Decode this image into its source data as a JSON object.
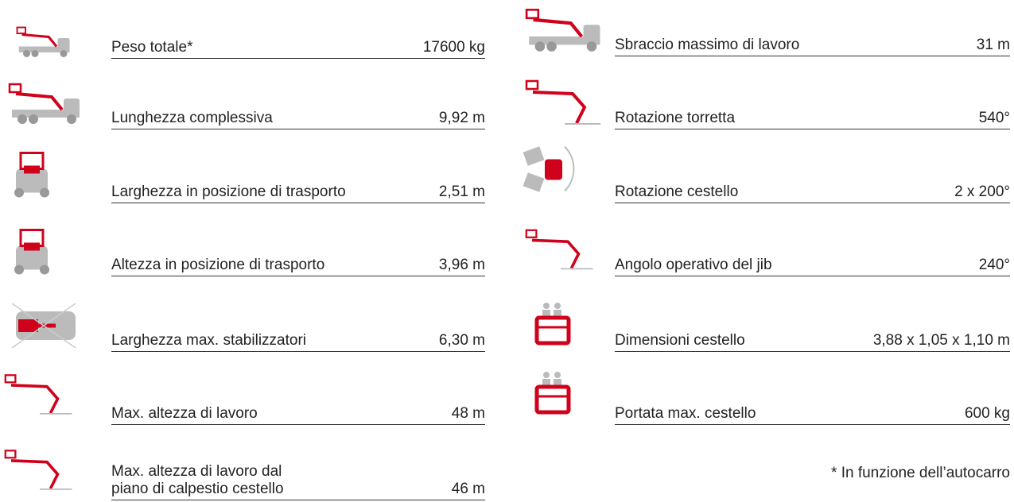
{
  "left_specs": [
    {
      "label": "Peso totale*",
      "value": "17600 kg"
    },
    {
      "label": "Lunghezza complessiva",
      "value": "9,92 m"
    },
    {
      "label": "Larghezza in posizione di trasporto",
      "value": "2,51 m"
    },
    {
      "label": "Altezza in posizione di trasporto",
      "value": "3,96 m"
    },
    {
      "label": "Larghezza max. stabilizzatori",
      "value": "6,30 m"
    },
    {
      "label": "Max. altezza di lavoro",
      "value": "48 m"
    },
    {
      "label": [
        "Max. altezza di lavoro dal",
        "piano di calpestio cestello"
      ],
      "value": "46 m"
    }
  ],
  "right_specs": [
    {
      "label": "Sbraccio massimo di lavoro",
      "value": "31 m"
    },
    {
      "label": "Rotazione torretta",
      "value": "540°"
    },
    {
      "label": "Rotazione cestello",
      "value": "2 x 200°"
    },
    {
      "label": "Angolo operativo del jib",
      "value": "240°"
    },
    {
      "label": "Dimensioni cestello",
      "value": "3,88 x 1,05 x 1,10 m"
    },
    {
      "label": "Portata max. cestello",
      "value": "600 kg"
    }
  ],
  "footnote": "* In funzione dell’autocarro"
}
